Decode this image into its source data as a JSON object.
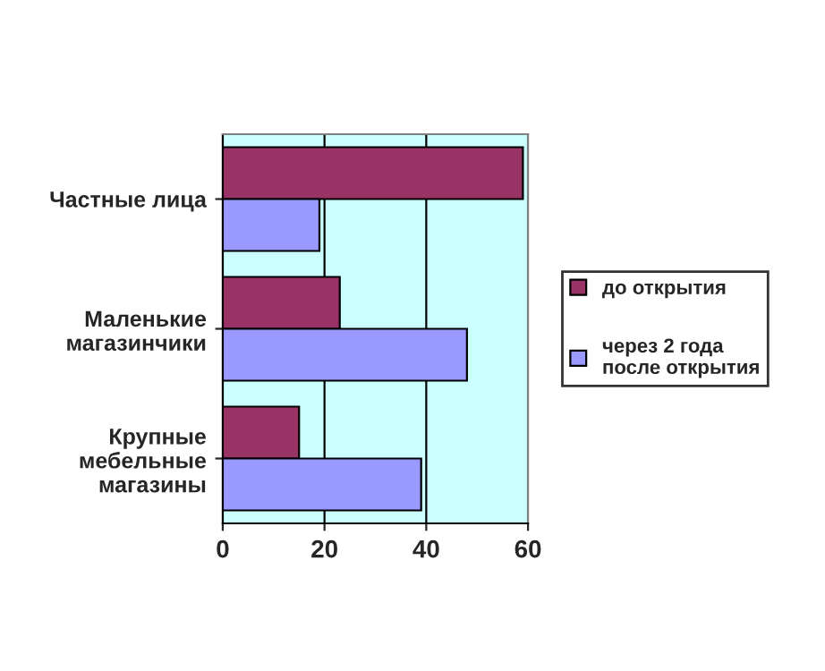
{
  "chart_data": {
    "type": "bar",
    "orientation": "horizontal",
    "categories": [
      "Частные лица",
      "Маленькие магазинчики",
      "Крупные мебельные магазины"
    ],
    "series": [
      {
        "name": "до открытия",
        "color": "#993366",
        "values": [
          59,
          23,
          15
        ]
      },
      {
        "name": "через 2 года после открытия",
        "color": "#9999ff",
        "values": [
          19,
          48,
          39
        ]
      }
    ],
    "xlim": [
      0,
      60
    ],
    "xticks": [
      0,
      20,
      40,
      60
    ],
    "grid": "x",
    "legend": "right"
  }
}
